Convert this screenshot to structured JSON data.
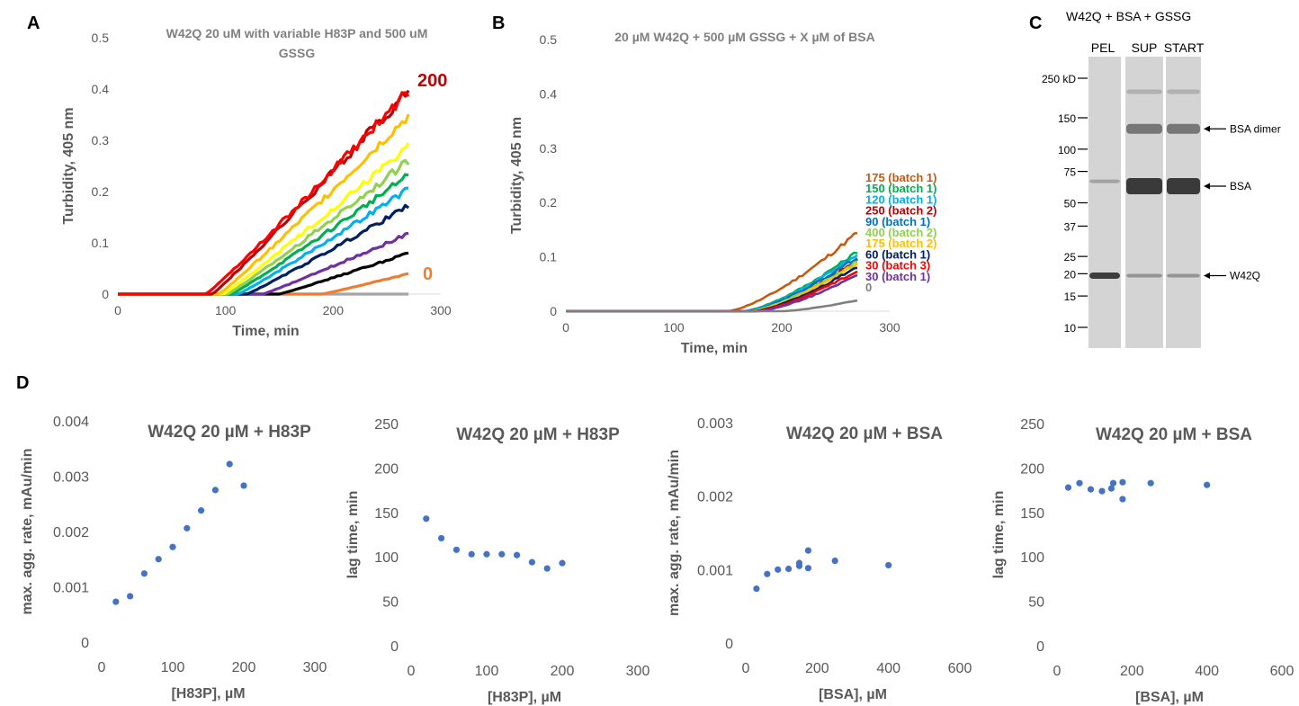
{
  "panel_labels": {
    "a": "A",
    "b": "B",
    "c": "C",
    "d": "D"
  },
  "chart_data": [
    {
      "panel": "A",
      "type": "line",
      "title": "W42Q 20 uM with variable H83P and 500 uM GSSG",
      "title_lines": [
        "W42Q 20 uM with variable H83P and 500 uM",
        "GSSG"
      ],
      "xlabel": "Time, min",
      "ylabel": "Turbidity, 405 nm",
      "xlim": [
        0,
        300
      ],
      "ylim": [
        0,
        0.5
      ],
      "xticks": [
        0,
        100,
        200,
        300
      ],
      "yticks": [
        0,
        0.1,
        0.2,
        0.3,
        0.4,
        0.5
      ],
      "annotations": [
        {
          "text": "200",
          "color": "#c00000"
        },
        {
          "text": "0",
          "color": "#ed7d31"
        }
      ],
      "series": [
        {
          "color": "#a5a5a5",
          "onset": 270,
          "end": 270,
          "final": 0.0
        },
        {
          "color": "#ed7d31",
          "onset": 190,
          "end": 270,
          "final": 0.04
        },
        {
          "color": "#000000",
          "onset": 150,
          "end": 270,
          "final": 0.08
        },
        {
          "color": "#7030a0",
          "onset": 135,
          "end": 270,
          "final": 0.118
        },
        {
          "color": "#002060",
          "onset": 120,
          "end": 270,
          "final": 0.172
        },
        {
          "color": "#00b0f0",
          "onset": 112,
          "end": 270,
          "final": 0.205
        },
        {
          "color": "#00b050",
          "onset": 106,
          "end": 270,
          "final": 0.232
        },
        {
          "color": "#92d050",
          "onset": 102,
          "end": 270,
          "final": 0.26
        },
        {
          "color": "#ffff00",
          "onset": 98,
          "end": 270,
          "final": 0.29
        },
        {
          "color": "#ffc000",
          "onset": 94,
          "end": 270,
          "final": 0.348
        },
        {
          "color": "#c00000",
          "onset": 88,
          "end": 270,
          "final": 0.398
        },
        {
          "color": "#ff0000",
          "onset": 82,
          "end": 270,
          "final": 0.395
        }
      ]
    },
    {
      "panel": "B",
      "type": "line",
      "title": "20 µM W42Q + 500 µM GSSG + X µM of BSA",
      "xlabel": "Time, min",
      "ylabel": "Turbidity, 405 nm",
      "xlim": [
        0,
        300
      ],
      "ylim": [
        0,
        0.5
      ],
      "xticks": [
        0,
        100,
        200,
        300
      ],
      "yticks": [
        0,
        0.1,
        0.2,
        0.3,
        0.4,
        0.5
      ],
      "series": [
        {
          "name": "175 (batch 1)",
          "color": "#c55a11",
          "onset": 150,
          "end": 270,
          "final": 0.145
        },
        {
          "name": "150 (batch 1)",
          "color": "#00b050",
          "onset": 165,
          "end": 270,
          "final": 0.11
        },
        {
          "name": "120 (batch 1)",
          "color": "#00b0f0",
          "onset": 166,
          "end": 270,
          "final": 0.105
        },
        {
          "name": "250 (batch 2)",
          "color": "#c00000",
          "onset": 170,
          "end": 270,
          "final": 0.095
        },
        {
          "name": "90 (batch 1)",
          "color": "#0070c0",
          "onset": 168,
          "end": 270,
          "final": 0.1
        },
        {
          "name": "400 (batch 2)",
          "color": "#92d050",
          "onset": 170,
          "end": 270,
          "final": 0.092
        },
        {
          "name": "175 (batch 2)",
          "color": "#ffc000",
          "onset": 172,
          "end": 270,
          "final": 0.088
        },
        {
          "name": "60 (batch 1)",
          "color": "#002060",
          "onset": 174,
          "end": 270,
          "final": 0.082
        },
        {
          "name": "30 (batch 3)",
          "color": "#ff0000",
          "onset": 176,
          "end": 270,
          "final": 0.075
        },
        {
          "name": "30 (batch 1)",
          "color": "#7030a0",
          "onset": 178,
          "end": 270,
          "final": 0.066
        },
        {
          "name": "0",
          "color": "#7f7f7f",
          "onset": 200,
          "end": 270,
          "final": 0.02
        }
      ]
    },
    {
      "panel": "D1",
      "type": "scatter",
      "title": "W42Q 20 µM + H83P",
      "xlabel": "[H83P], µM",
      "ylabel": "max. agg. rate, mAu/min",
      "xlim": [
        0,
        300
      ],
      "ylim": [
        0,
        0.004
      ],
      "xticks": [
        0,
        100,
        200,
        300
      ],
      "yticks": [
        0,
        0.001,
        0.002,
        0.003,
        0.004
      ],
      "color": "#4472c4",
      "x": [
        20,
        40,
        60,
        80,
        100,
        120,
        140,
        160,
        180,
        200
      ],
      "y": [
        0.00073,
        0.00083,
        0.00124,
        0.0015,
        0.00172,
        0.00206,
        0.00238,
        0.00275,
        0.00322,
        0.00283
      ]
    },
    {
      "panel": "D2",
      "type": "scatter",
      "title": "W42Q 20 µM + H83P",
      "xlabel": "[H83P], µM",
      "ylabel": "lag time, min",
      "xlim": [
        0,
        300
      ],
      "ylim": [
        0,
        250
      ],
      "xticks": [
        0,
        100,
        200,
        300
      ],
      "yticks": [
        0,
        50,
        100,
        150,
        200,
        250
      ],
      "color": "#4472c4",
      "x": [
        20,
        40,
        60,
        80,
        100,
        120,
        140,
        160,
        180,
        200
      ],
      "y": [
        143,
        121,
        108,
        103,
        103,
        103,
        102,
        94,
        87,
        93
      ]
    },
    {
      "panel": "D3",
      "type": "scatter",
      "title": "W42Q 20 µM + BSA",
      "xlabel": "[BSA], µM",
      "ylabel": "max. agg. rate, mAu/min",
      "xlim": [
        0,
        600
      ],
      "ylim": [
        0,
        0.003
      ],
      "xticks": [
        0,
        200,
        400,
        600
      ],
      "yticks": [
        0,
        0.001,
        0.002,
        0.003
      ],
      "color": "#4472c4",
      "x": [
        30,
        60,
        90,
        120,
        150,
        150,
        175,
        175,
        250,
        400
      ],
      "y": [
        0.00074,
        0.00094,
        0.001,
        0.00101,
        0.00105,
        0.00109,
        0.00126,
        0.00102,
        0.00112,
        0.00106
      ]
    },
    {
      "panel": "D4",
      "type": "scatter",
      "title": "W42Q 20 µM + BSA",
      "xlabel": "[BSA], µM",
      "ylabel": "lag time, min",
      "xlim": [
        0,
        600
      ],
      "ylim": [
        0,
        250
      ],
      "xticks": [
        0,
        200,
        400,
        600
      ],
      "yticks": [
        0,
        50,
        100,
        150,
        200,
        250
      ],
      "color": "#4472c4",
      "x": [
        30,
        60,
        90,
        120,
        145,
        150,
        175,
        175,
        250,
        400
      ],
      "y": [
        178,
        183,
        176,
        174,
        177,
        183,
        165,
        184,
        183,
        181
      ]
    }
  ],
  "gel": {
    "title": "W42Q + BSA + GSSG",
    "lanes": [
      "PEL",
      "SUP",
      "START"
    ],
    "ladder": [
      {
        "label": "250 kD",
        "kd": 250
      },
      {
        "label": "150",
        "kd": 150
      },
      {
        "label": "100",
        "kd": 100
      },
      {
        "label": "75",
        "kd": 75
      },
      {
        "label": "50",
        "kd": 50
      },
      {
        "label": "37",
        "kd": 37
      },
      {
        "label": "25",
        "kd": 25
      },
      {
        "label": "20",
        "kd": 20
      },
      {
        "label": "15",
        "kd": 15
      },
      {
        "label": "10",
        "kd": 10
      }
    ],
    "annotations": [
      {
        "label": "BSA dimer"
      },
      {
        "label": "BSA"
      },
      {
        "label": "W42Q"
      }
    ]
  }
}
